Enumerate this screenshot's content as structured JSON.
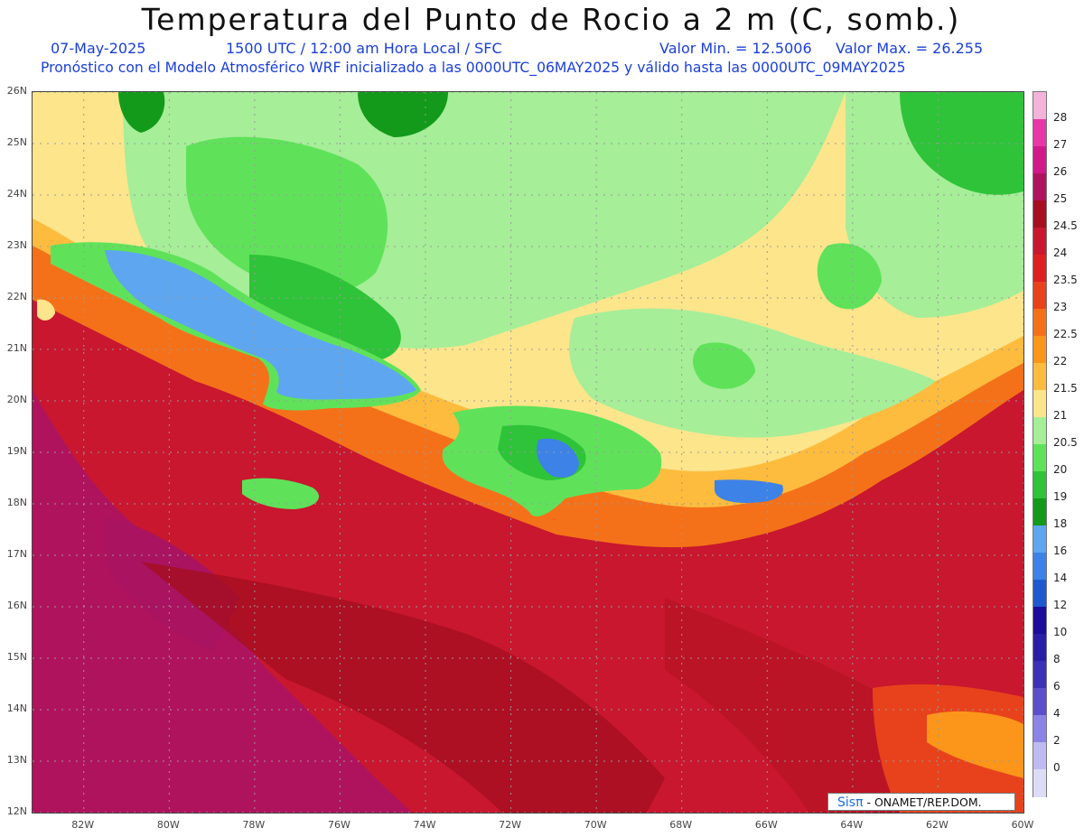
{
  "title": "Temperatura del Punto de Rocio a 2 m (C, somb.)",
  "subtitle": {
    "date": "07-May-2025",
    "time": "1500 UTC / 12:00 am Hora Local / SFC",
    "min": "Valor Min. = 12.5006",
    "max": "Valor Max. = 26.255",
    "model": "Pronóstico con el Modelo Atmosférico WRF inicializado a las 0000UTC_06MAY2025 y válido hasta las  0000UTC_09MAY2025"
  },
  "map": {
    "lat_labels": [
      "26N",
      "25N",
      "24N",
      "23N",
      "22N",
      "21N",
      "20N",
      "19N",
      "18N",
      "17N",
      "16N",
      "15N",
      "14N",
      "13N",
      "12N"
    ],
    "lon_labels": [
      "82W",
      "80W",
      "78W",
      "76W",
      "74W",
      "72W",
      "70W",
      "68W",
      "66W",
      "64W",
      "62W",
      "60W"
    ],
    "lat_range": [
      12,
      26
    ],
    "lon_range": [
      -83.2,
      -60
    ]
  },
  "colorbar": {
    "labels": [
      "28",
      "27",
      "26",
      "25",
      "24.5",
      "24",
      "23.5",
      "23",
      "22.5",
      "22",
      "21.5",
      "21",
      "20.5",
      "20",
      "19",
      "18",
      "16",
      "14",
      "12",
      "10",
      "8",
      "6",
      "4",
      "2",
      "0"
    ],
    "colors": [
      "#f4b3d9",
      "#e837a6",
      "#d11a8a",
      "#b0135e",
      "#a50f1f",
      "#c8172e",
      "#dd1f22",
      "#e8421c",
      "#f4711a",
      "#fb961a",
      "#fdbc3e",
      "#fde58c",
      "#a6ee98",
      "#5fe25a",
      "#2fc339",
      "#139a1b",
      "#5ea6f0",
      "#3d82e6",
      "#1f59cf",
      "#1b0c9a",
      "#2a1da6",
      "#3d32b6",
      "#5b4fcc",
      "#8c83e6",
      "#bfbaf2",
      "#dcdcf6"
    ]
  },
  "credit": {
    "brand": "Sisπ",
    "text": "- ONAMET/REP.DOM."
  }
}
